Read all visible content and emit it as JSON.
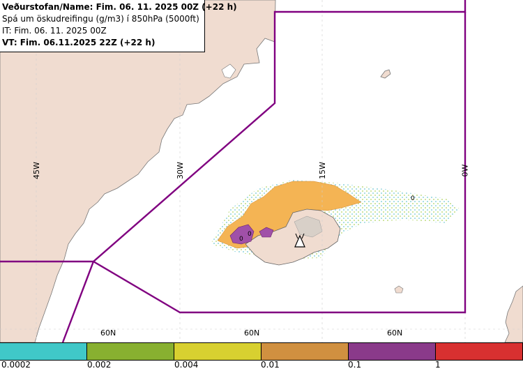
{
  "header": {
    "line1": "Veðurstofan/Name: Fim. 06. 11. 2025 00Z (+22 h)",
    "line2": "Spá um öskudreifingu (g/m3) í 850hPa (5000ft)",
    "line3": "IT: Fim. 06. 11. 2025 00Z",
    "line4": "VT: Fim. 06.11.2025 22Z (+22 h)"
  },
  "grid": {
    "lon_labels": [
      "45W",
      "30W",
      "15W",
      "0W"
    ],
    "lat_labels": [
      "60N",
      "60N",
      "60N"
    ]
  },
  "contour_labels": [
    "0",
    "0",
    "0"
  ],
  "legend": {
    "labels": [
      "0.0002",
      "0.002",
      "0.004",
      "0.01",
      "0.1",
      "1"
    ],
    "colors": [
      "#40c8c8",
      "#88b030",
      "#d8d030",
      "#d09040",
      "#8a3a8a",
      "#d83030"
    ]
  },
  "colors": {
    "land": "#f0dcd0",
    "boundary": "#800080",
    "ice": "#d8d0c8"
  },
  "icons": [
    "volcano-icon"
  ]
}
